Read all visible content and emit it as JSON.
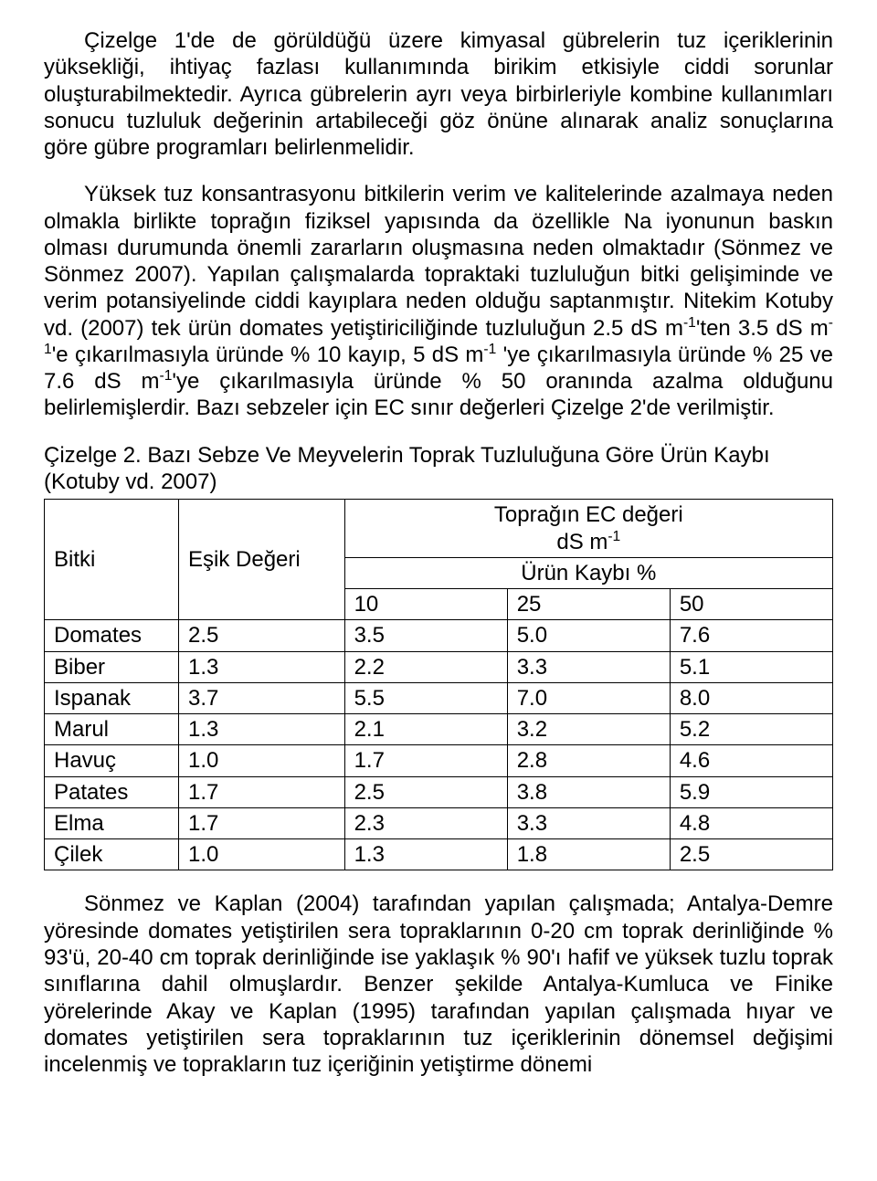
{
  "paragraphs": {
    "p1_html": "Çizelge 1'de de görüldüğü üzere kimyasal gübrelerin tuz içeriklerinin yüksekliği, ihtiyaç fazlası kullanımında birikim etkisiyle ciddi sorunlar oluşturabilmektedir. Ayrıca gübrelerin ayrı veya birbirleriyle kombine kullanımları sonucu tuzluluk değerinin artabileceği göz önüne alınarak analiz sonuçlarına göre gübre programları belirlenmelidir.",
    "p2_html": "Yüksek tuz konsantrasyonu bitkilerin verim ve kalitelerinde azalmaya neden olmakla birlikte toprağın fiziksel yapısında da özellikle Na iyonunun baskın olması durumunda önemli zararların oluşmasına neden olmaktadır (Sönmez ve Sönmez 2007). Yapılan çalışmalarda topraktaki tuzluluğun bitki gelişiminde ve verim potansiyelinde ciddi kayıplara neden olduğu saptanmıştır. Nitekim Kotuby vd. (2007) tek ürün domates yetiştiriciliğinde tuzluluğun 2.5 dS m<sup>-1</sup>'ten 3.5 dS m<sup>-1</sup>'e çıkarılmasıyla üründe % 10 kayıp, 5 dS m<sup>-1</sup> 'ye çıkarılmasıyla üründe % 25 ve 7.6 dS m<sup>-1</sup>'ye çıkarılmasıyla üründe % 50 oranında azalma olduğunu belirlemişlerdir. Bazı sebzeler için EC sınır değerleri Çizelge 2'de verilmiştir.",
    "p3_html": "Sönmez ve Kaplan (2004) tarafından yapılan çalışmada; Antalya-Demre yöresinde domates yetiştirilen sera topraklarının 0-20 cm toprak derinliğinde % 93'ü, 20-40 cm toprak derinliğinde ise yaklaşık % 90'ı hafif ve yüksek tuzlu toprak sınıflarına dahil olmuşlardır. Benzer şekilde Antalya-Kumluca ve Finike yörelerinde Akay ve Kaplan (1995) tarafından yapılan çalışmada hıyar ve domates yetiştirilen sera topraklarının tuz içeriklerinin dönemsel değişimi incelenmiş ve toprakların tuz içeriğinin yetiştirme dönemi"
  },
  "table2": {
    "caption": "Çizelge 2. Bazı Sebze Ve Meyvelerin Toprak Tuzluluğuna Göre Ürün Kaybı (Kotuby vd. 2007)",
    "col_plant": "Bitki",
    "col_threshold": "Eşik Değeri",
    "ec_header_html": "Toprağın EC değeri<br>dS m<sup>-1</sup>",
    "loss_header": "Ürün Kaybı %",
    "loss_cols": [
      "10",
      "25",
      "50"
    ],
    "rows": [
      {
        "name": "Domates",
        "threshold": "2.5",
        "v10": "3.5",
        "v25": "5.0",
        "v50": "7.6"
      },
      {
        "name": "Biber",
        "threshold": "1.3",
        "v10": "2.2",
        "v25": "3.3",
        "v50": "5.1"
      },
      {
        "name": "Ispanak",
        "threshold": "3.7",
        "v10": "5.5",
        "v25": "7.0",
        "v50": "8.0"
      },
      {
        "name": "Marul",
        "threshold": "1.3",
        "v10": "2.1",
        "v25": "3.2",
        "v50": "5.2"
      },
      {
        "name": "Havuç",
        "threshold": "1.0",
        "v10": "1.7",
        "v25": "2.8",
        "v50": "4.6"
      },
      {
        "name": "Patates",
        "threshold": "1.7",
        "v10": "2.5",
        "v25": "3.8",
        "v50": "5.9"
      },
      {
        "name": "Elma",
        "threshold": "1.7",
        "v10": "2.3",
        "v25": "3.3",
        "v50": "4.8"
      },
      {
        "name": "Çilek",
        "threshold": "1.0",
        "v10": "1.3",
        "v25": "1.8",
        "v50": "2.5"
      }
    ]
  }
}
